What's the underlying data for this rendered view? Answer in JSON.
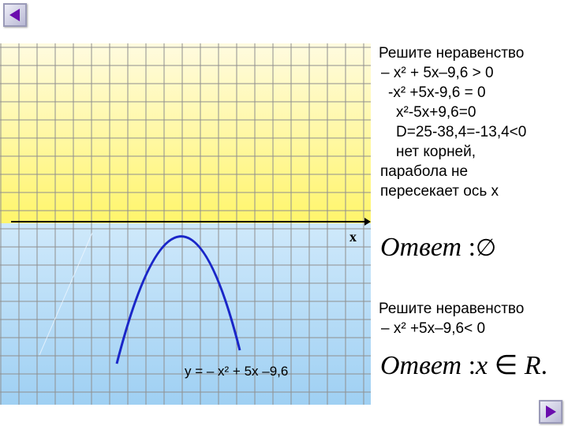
{
  "colors": {
    "upper_fill": "#fff56b",
    "upper_fill_top": "#fffbe0",
    "lower_fill": "#9fd0f3",
    "lower_fill_top": "#cfe9fb",
    "grid": "#8f8f8f",
    "curve": "#1a26c8",
    "axis": "#000000",
    "nav_arrow": "#6a0dad"
  },
  "icons": {
    "prev": "triangle-left-icon",
    "next": "triangle-right-icon"
  },
  "graph": {
    "axis_label": "x",
    "function_label": "y = – x² + 5x –9,6"
  },
  "problem1": {
    "lines": [
      "Решите неравенство",
      "– x² + 5x–9,6 > 0",
      "-x² +5x-9,6 = 0",
      "x²-5x+9,6=0",
      "D=25-38,4=-13,4<0",
      "нет корней,",
      "парабола не",
      "пересекает ось x"
    ],
    "answer_word": "Ответ",
    "answer_colon": ":",
    "answer_value": "∅"
  },
  "problem2": {
    "lines": [
      "Решите неравенство",
      "– x² +5x–9,6< 0"
    ],
    "answer_word": "Ответ",
    "answer_colon": ":",
    "answer_var": "x",
    "answer_elem": "∈",
    "answer_set": "R",
    "answer_end": "."
  }
}
